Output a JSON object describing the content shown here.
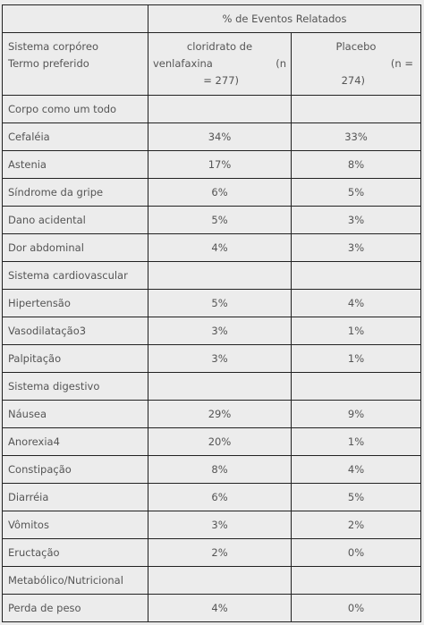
{
  "header": {
    "group_title": "% de Eventos Relatados",
    "col1_line1": "Sistema corpóreo",
    "col1_line2": "Termo preferido",
    "col2_line1": "cloridrato de",
    "col2_line2": "venlafaxina",
    "col2_line2b": "(n",
    "col2_line3": "= 277)",
    "col3_line1": "Placebo",
    "col3_line2": "(n =",
    "col3_line3": "274)"
  },
  "rows": [
    {
      "label": "Corpo como um todo",
      "drug": "",
      "placebo": ""
    },
    {
      "label": "Cefaléia",
      "drug": "34%",
      "placebo": "33%"
    },
    {
      "label": "Astenia",
      "drug": "17%",
      "placebo": "8%"
    },
    {
      "label": "Síndrome da gripe",
      "drug": "6%",
      "placebo": "5%"
    },
    {
      "label": "Dano acidental",
      "drug": "5%",
      "placebo": "3%"
    },
    {
      "label": "Dor abdominal",
      "drug": "4%",
      "placebo": "3%"
    },
    {
      "label": "Sistema cardiovascular",
      "drug": "",
      "placebo": ""
    },
    {
      "label": "Hipertensão",
      "drug": "5%",
      "placebo": "4%"
    },
    {
      "label": "Vasodilatação3",
      "drug": "3%",
      "placebo": "1%"
    },
    {
      "label": "Palpitação",
      "drug": "3%",
      "placebo": "1%"
    },
    {
      "label": "Sistema digestivo",
      "drug": "",
      "placebo": ""
    },
    {
      "label": "Náusea",
      "drug": "29%",
      "placebo": "9%"
    },
    {
      "label": "Anorexia4",
      "drug": "20%",
      "placebo": "1%"
    },
    {
      "label": "Constipação",
      "drug": "8%",
      "placebo": "4%"
    },
    {
      "label": "Diarréia",
      "drug": "6%",
      "placebo": "5%"
    },
    {
      "label": "Vômitos",
      "drug": "3%",
      "placebo": "2%"
    },
    {
      "label": "Eructação",
      "drug": "2%",
      "placebo": "0%"
    },
    {
      "label": "Metabólico/Nutricional",
      "drug": "",
      "placebo": ""
    },
    {
      "label": "Perda de peso",
      "drug": "4%",
      "placebo": "0%"
    }
  ]
}
